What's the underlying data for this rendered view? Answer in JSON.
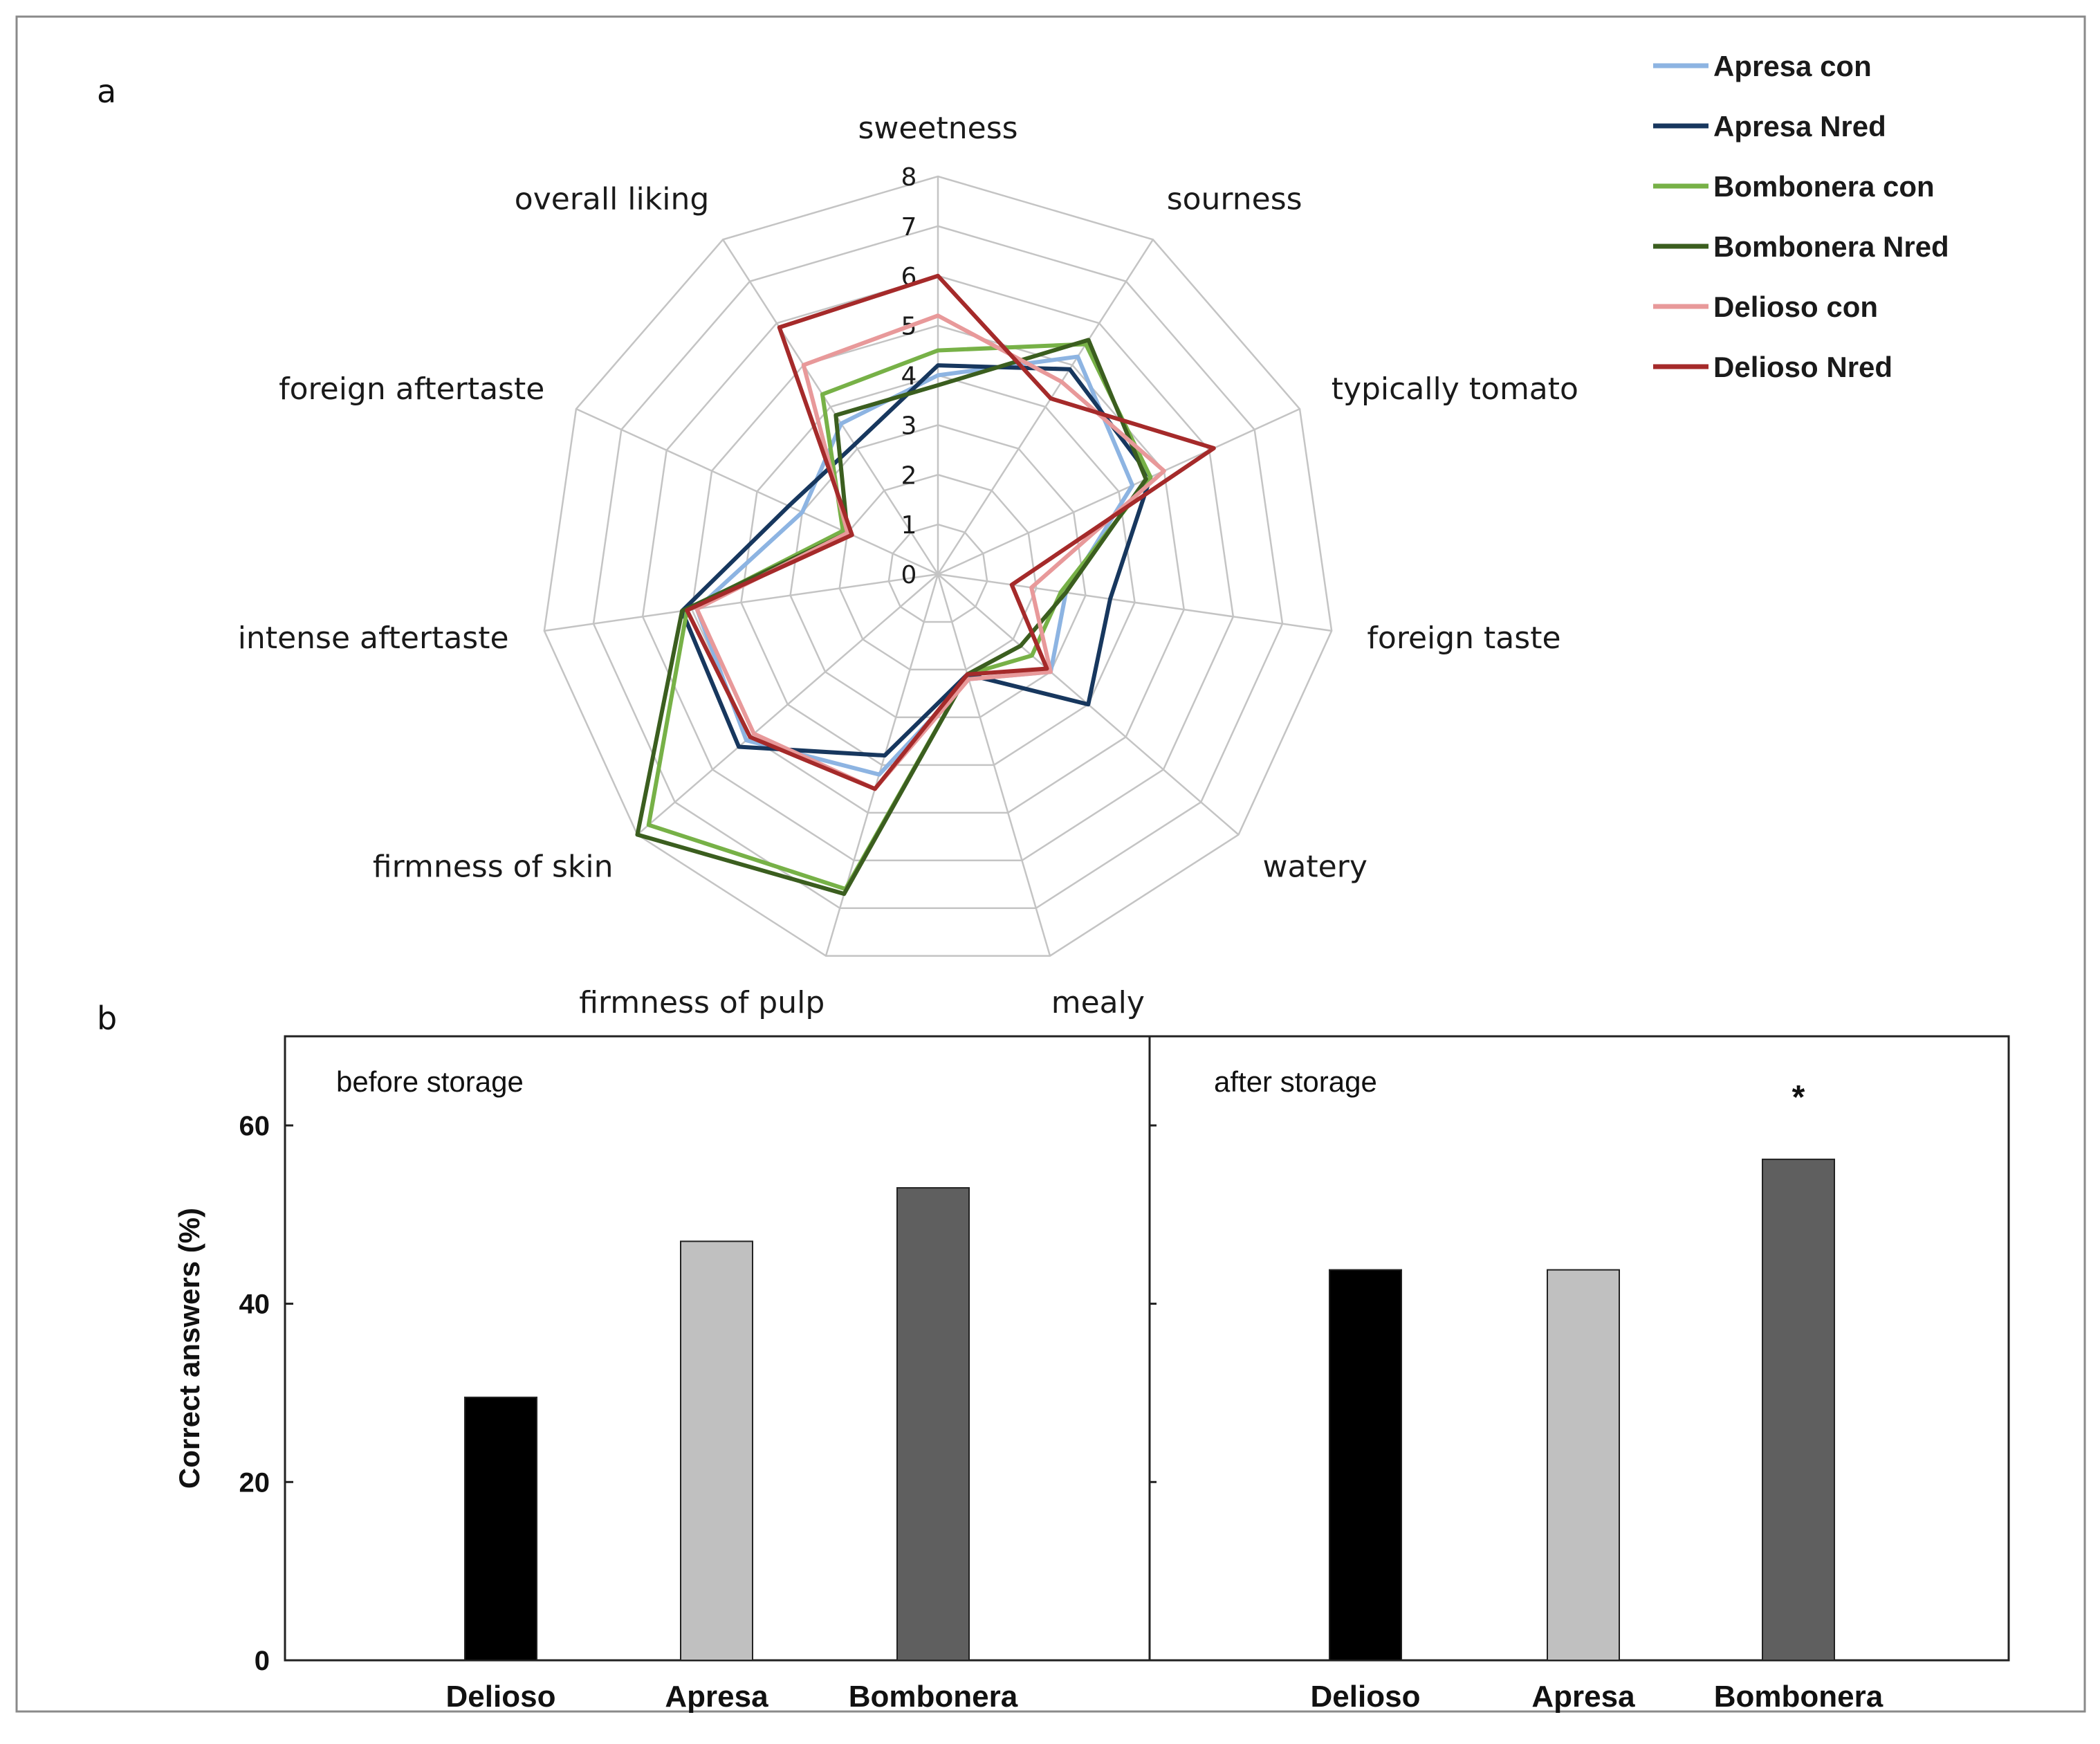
{
  "figure": {
    "panel_a_letter": "a",
    "panel_b_letter": "b"
  },
  "chart_data": [
    {
      "type": "radar",
      "panel": "a",
      "axes": [
        "sweetness",
        "sourness",
        "typically tomato",
        "foreign taste",
        "watery",
        "mealy",
        "firmness of pulp",
        "firmness of skin",
        "intense aftertaste",
        "foreign aftertaste",
        "overall liking"
      ],
      "range": [
        0,
        8
      ],
      "ticks": [
        "0",
        "1",
        "2",
        "3",
        "4",
        "5",
        "6",
        "7",
        "8"
      ],
      "series": [
        {
          "name": "Apresa  con",
          "color": "#8db4e2",
          "values": [
            4.0,
            5.2,
            4.3,
            2.6,
            3.0,
            2.2,
            4.2,
            5.1,
            4.9,
            3.0,
            3.6
          ]
        },
        {
          "name": "Apresa Nred",
          "color": "#17375e",
          "values": [
            4.2,
            4.9,
            4.7,
            3.5,
            4.0,
            2.1,
            3.8,
            5.3,
            5.2,
            3.3,
            3.1
          ]
        },
        {
          "name": "Bombonera con",
          "color": "#77b147",
          "values": [
            4.5,
            5.5,
            4.7,
            2.5,
            2.5,
            2.1,
            6.6,
            7.7,
            5.1,
            2.1,
            4.3
          ]
        },
        {
          "name": "Bombonera Nred",
          "color": "#3b5e1f",
          "values": [
            3.8,
            5.6,
            4.6,
            2.6,
            2.2,
            2.1,
            6.7,
            8.0,
            5.2,
            2.0,
            3.8
          ]
        },
        {
          "name": "Delioso con",
          "color": "#e8999a",
          "values": [
            5.2,
            4.6,
            5.0,
            1.9,
            3.0,
            2.2,
            4.5,
            4.9,
            4.9,
            2.0,
            5.0
          ]
        },
        {
          "name": "Delioso Nred",
          "color": "#a52a2a",
          "values": [
            6.0,
            4.2,
            6.1,
            1.5,
            2.9,
            2.1,
            4.5,
            5.0,
            5.1,
            1.9,
            5.9
          ]
        }
      ]
    },
    {
      "type": "bar",
      "panel": "b",
      "ylabel": "Correct answers (%)",
      "ylim": [
        0,
        70
      ],
      "yticks": [
        "0",
        "20",
        "40",
        "60"
      ],
      "panels": [
        {
          "title": "before storage",
          "categories": [
            "Delioso",
            "Apresa",
            "Bombonera"
          ],
          "values": [
            29.5,
            47,
            53
          ],
          "colors": [
            "#000000",
            "#c0c0c0",
            "#5f5f5f"
          ],
          "annotations": [
            "",
            "",
            ""
          ]
        },
        {
          "title": "after storage",
          "categories": [
            "Delioso",
            "Apresa",
            "Bombonera"
          ],
          "values": [
            43.8,
            43.8,
            56.2
          ],
          "colors": [
            "#000000",
            "#c0c0c0",
            "#5f5f5f"
          ],
          "annotations": [
            "",
            "",
            "*"
          ]
        }
      ]
    }
  ]
}
